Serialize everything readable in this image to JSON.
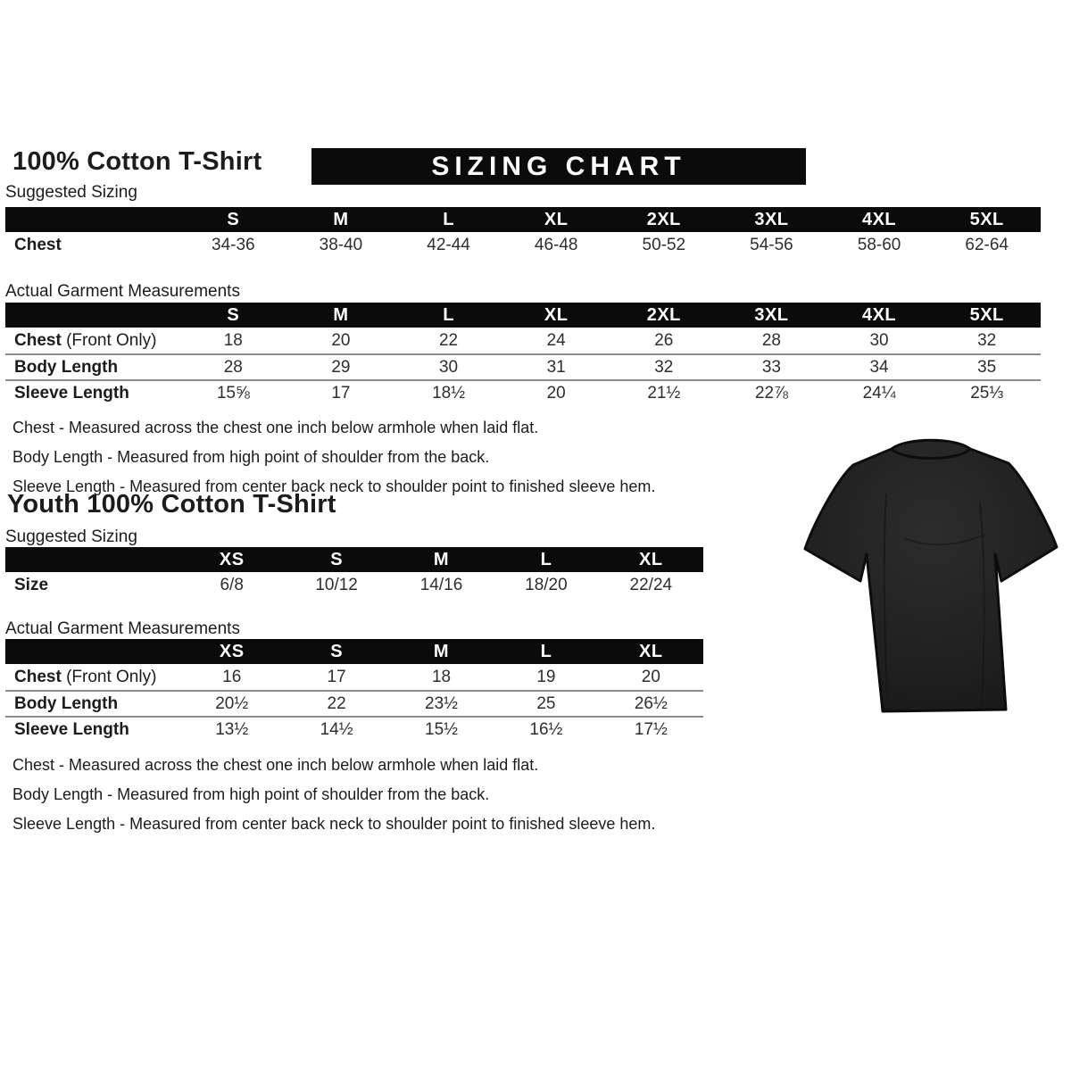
{
  "colors": {
    "banner_bg": "#0b0b0b",
    "header_bg": "#0b0b0b",
    "header_text": "#ffffff",
    "text": "#1c1c1c",
    "value_text": "#2e2e2e",
    "separator": "#8c8c8c",
    "tshirt": "#202020"
  },
  "adult": {
    "title": "100% Cotton T-Shirt",
    "banner": "SIZING CHART",
    "suggested": {
      "label": "Suggested Sizing",
      "columns": [
        "S",
        "M",
        "L",
        "XL",
        "2XL",
        "3XL",
        "4XL",
        "5XL"
      ],
      "rows": [
        {
          "label": "Chest",
          "bold": true,
          "values": [
            "34-36",
            "38-40",
            "42-44",
            "46-48",
            "50-52",
            "54-56",
            "58-60",
            "62-64"
          ]
        }
      ]
    },
    "actual": {
      "label": "Actual Garment Measurements",
      "columns": [
        "S",
        "M",
        "L",
        "XL",
        "2XL",
        "3XL",
        "4XL",
        "5XL"
      ],
      "rows": [
        {
          "label": "Chest",
          "suffix": "(Front Only)",
          "bold": true,
          "values": [
            "18",
            "20",
            "22",
            "24",
            "26",
            "28",
            "30",
            "32"
          ]
        },
        {
          "label": "Body Length",
          "bold": true,
          "separated": true,
          "values": [
            "28",
            "29",
            "30",
            "31",
            "32",
            "33",
            "34",
            "35"
          ]
        },
        {
          "label": "Sleeve Length",
          "bold": true,
          "separated": true,
          "values": [
            "15⅝",
            "17",
            "18½",
            "20",
            "21½",
            "22⅞",
            "24¼",
            "25⅓"
          ]
        }
      ]
    },
    "notes": [
      "Chest - Measured across the chest one inch below armhole when laid flat.",
      "Body Length - Measured from high point of shoulder from the back.",
      "Sleeve Length - Measured from center back neck to shoulder point to finished sleeve hem."
    ]
  },
  "youth": {
    "title": "Youth 100% Cotton T-Shirt",
    "suggested": {
      "label": "Suggested Sizing",
      "columns": [
        "XS",
        "S",
        "M",
        "L",
        "XL"
      ],
      "rows": [
        {
          "label": "Size",
          "bold": true,
          "values": [
            "6/8",
            "10/12",
            "14/16",
            "18/20",
            "22/24"
          ]
        }
      ]
    },
    "actual": {
      "label": "Actual Garment Measurements",
      "columns": [
        "XS",
        "S",
        "M",
        "L",
        "XL"
      ],
      "rows": [
        {
          "label": "Chest",
          "suffix": "(Front Only)",
          "bold": true,
          "values": [
            "16",
            "17",
            "18",
            "19",
            "20"
          ]
        },
        {
          "label": "Body Length",
          "bold": true,
          "separated": true,
          "values": [
            "20½",
            "22",
            "23½",
            "25",
            "26½"
          ]
        },
        {
          "label": "Sleeve Length",
          "bold": true,
          "separated": true,
          "values": [
            "13½",
            "14½",
            "15½",
            "16½",
            "17½"
          ]
        }
      ]
    },
    "notes": [
      "Chest - Measured across the chest one inch below armhole when laid flat.",
      "Body Length - Measured from high point of shoulder from the back.",
      "Sleeve Length - Measured from center back neck to shoulder point to finished sleeve hem."
    ]
  },
  "tshirt_photo": {
    "description": "black short-sleeve crew-neck t-shirt",
    "color": "#202020"
  }
}
